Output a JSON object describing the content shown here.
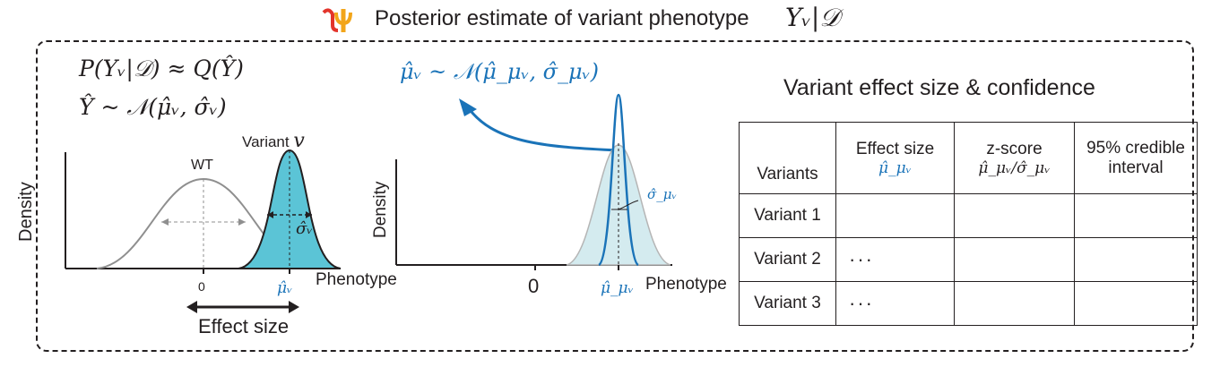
{
  "header": {
    "logo_icon": "red-psi-symbol-logo",
    "title": "Posterior estimate of variant phenotype",
    "title_math": "Yᵥ|𝒟"
  },
  "equations": {
    "line1": "P(Yᵥ|𝒟)  ≈ Q(Ŷ)",
    "line2": "Ŷ ~ 𝒩(μ̂ᵥ, σ̂ᵥ)"
  },
  "left_plot": {
    "y_axis_label": "Density",
    "x_axis_label": "Phenotype",
    "wt_label": "WT",
    "variant_label": "Variant",
    "variant_symbol": "v",
    "sigma_label": "σ̂ᵥ",
    "x_tick_zero": "0",
    "x_tick_mu": "μ̂ᵥ",
    "effect_size_label": "Effect size",
    "colors": {
      "wt_curve": "#8f8f8f",
      "variant_fill": "#5bc4d6"
    }
  },
  "middle_plot": {
    "prior_equation": "μ̂ᵥ ~ 𝒩(μ̂_μᵥ, σ̂_μᵥ)",
    "y_axis_label": "Density",
    "x_axis_label": "Phenotype",
    "x_tick_zero": "0",
    "x_tick_mu": "μ̂_μᵥ",
    "sigma_label": "σ̂_μᵥ",
    "colors": {
      "accent": "#1a73b8",
      "outer_fill": "#d4ebef"
    }
  },
  "table": {
    "title": "Variant effect size & confidence",
    "headers": [
      {
        "label": "Variants",
        "sub": ""
      },
      {
        "label": "Effect size",
        "sub": "μ̂_μᵥ"
      },
      {
        "label": "z-score",
        "sub": "μ̂_μᵥ/σ̂_μᵥ"
      },
      {
        "label": "95% credible interval",
        "sub": ""
      }
    ],
    "rows": [
      {
        "name": "Variant 1",
        "effect": ""
      },
      {
        "name": "Variant 2",
        "effect": "···"
      },
      {
        "name": "Variant 3",
        "effect": "···"
      }
    ]
  }
}
